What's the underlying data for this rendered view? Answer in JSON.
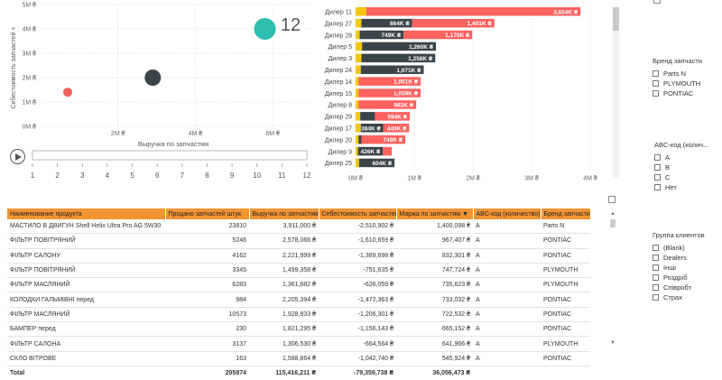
{
  "scatter": {
    "y_label": "Себестоимость запчастей +",
    "x_label": "Выручка по запчастям",
    "y_ticks": [
      "0M ₴",
      "1M ₴",
      "2M ₴",
      "3M ₴",
      "4M ₴",
      "5M ₴"
    ],
    "x_ticks": [
      "2M ₴",
      "4M ₴",
      "6M ₴"
    ],
    "play_value": "12",
    "timeline_ticks": [
      "1",
      "2",
      "3",
      "4",
      "5",
      "6",
      "7",
      "8",
      "9",
      "10",
      "11",
      "12"
    ],
    "points": [
      {
        "x": 0.7,
        "y": 1.4,
        "r": 5,
        "color": "#f25e5e"
      },
      {
        "x": 2.9,
        "y": 2.0,
        "r": 9,
        "color": "#3b4449"
      },
      {
        "x": 5.8,
        "y": 4.0,
        "r": 12,
        "color": "#2ebfae"
      }
    ]
  },
  "chart_data": {
    "type": "bar",
    "stacked": true,
    "orientation": "horizontal",
    "categories": [
      "Дилер 11",
      "Дилер 27",
      "Дилер 28",
      "Дилер 5",
      "Дилер 3",
      "Дилер 24",
      "Дилер 14",
      "Дилер 15",
      "Дилер 8",
      "Дилер 29",
      "Дилер 17",
      "Дилер 20",
      "Дилер 9",
      "Дилер 25"
    ],
    "series": [
      {
        "color": "#f2c80f",
        "values": [
          0.18,
          0.1,
          0.07,
          0.11,
          0.1,
          0.09,
          0.05,
          0.05,
          0.05,
          0.08,
          0.09,
          0.05,
          0.04,
          0.06
        ]
      },
      {
        "color": "#3b4449",
        "values": [
          0,
          0.864,
          0.749,
          1.26,
          1.258,
          1.071,
          0,
          0,
          0,
          0.25,
          0.384,
          0.05,
          0.426,
          0.604
        ]
      },
      {
        "color": "#fd625e",
        "values": [
          3.654,
          1.401,
          1.17,
          0,
          0,
          0,
          1.061,
          1.059,
          0.983,
          0.594,
          0.44,
          0.748,
          0.15,
          0
        ]
      }
    ],
    "labels": [
      [
        "",
        "",
        "3,654K ₴"
      ],
      [
        "",
        "864K ₴",
        "1,401K ₴"
      ],
      [
        "",
        "749K ₴",
        "1,170K ₴"
      ],
      [
        "",
        "1,260K ₴",
        ""
      ],
      [
        "",
        "1,258K ₴",
        ""
      ],
      [
        "",
        "1,071K ₴",
        ""
      ],
      [
        "",
        "",
        "1,061K ₴"
      ],
      [
        "",
        "",
        "1,059K ₴"
      ],
      [
        "",
        "",
        "983K ₴"
      ],
      [
        "",
        "",
        "594K ₴"
      ],
      [
        "",
        "384K ₴",
        "440K ₴"
      ],
      [
        "",
        "",
        "748K ₴"
      ],
      [
        "",
        "426K ₴",
        ""
      ],
      [
        "",
        "604K ₴",
        ""
      ]
    ],
    "x_ticks": [
      "0M ₴",
      "1M ₴",
      "2M ₴",
      "3M ₴",
      "4M ₴"
    ],
    "xlim": [
      0,
      4
    ]
  },
  "table": {
    "headers": [
      "Наименование продукта",
      "Продано запчастей штук",
      "Выручка по запчастям",
      "Себестоимость запчастей",
      "Маржа по запчастям ▼",
      "ABC-код (количество)",
      "Бренд запчасти"
    ],
    "rows": [
      [
        "МАСТИЛО В ДВИГУН Shell Helix Ultra  Pro AG 5W30",
        "23810",
        "3,911,000 ₴",
        "-2,510,902 ₴",
        "1,400,098 ₴",
        "A",
        "Parts N"
      ],
      [
        "ФІЛЬТР ПОВІТРЯНИЙ",
        "5246",
        "2,578,066 ₴",
        "-1,610,659 ₴",
        "967,407 ₴",
        "A",
        "PONTIAC"
      ],
      [
        "ФІЛЬТР САЛОНУ",
        "4162",
        "2,221,999 ₴",
        "-1,389,698 ₴",
        "832,301 ₴",
        "A",
        "PONTIAC"
      ],
      [
        "ФІЛЬТР ПОВІТРЯНИЙ",
        "3345",
        "1,499,358 ₴",
        "-751,635 ₴",
        "747,724 ₴",
        "A",
        "PLYMOUTH"
      ],
      [
        "ФІЛЬТР МАСЛЯНИЙ",
        "6283",
        "1,361,682 ₴",
        "-626,059 ₴",
        "735,623 ₴",
        "A",
        "PLYMOUTH"
      ],
      [
        "КОЛОДКИ ГАЛЬМІВНІ перед",
        "984",
        "2,205,394 ₴",
        "-1,472,363 ₴",
        "733,032 ₴",
        "A",
        "PONTIAC"
      ],
      [
        "ФІЛЬТР МАСЛЯНИЙ",
        "10573",
        "1,928,833 ₴",
        "-1,206,301 ₴",
        "722,532 ₴",
        "A",
        "PONTIAC"
      ],
      [
        "БАМПЕР перед",
        "230",
        "1,821,295 ₴",
        "-1,156,143 ₴",
        "665,152 ₴",
        "A",
        "PONTIAC"
      ],
      [
        "ФІЛЬТР САЛОНА",
        "3137",
        "1,306,530 ₴",
        "-664,564 ₴",
        "641,966 ₴",
        "A",
        "PLYMOUTH"
      ],
      [
        "СКЛО ВІТРОВЕ",
        "163",
        "1,588,664 ₴",
        "-1,042,740 ₴",
        "545,924 ₴",
        "A",
        "PONTIAC"
      ]
    ],
    "total": [
      "Total",
      "205874",
      "115,416,211 ₴",
      "-79,359,738 ₴",
      "36,056,473 ₴",
      "",
      ""
    ]
  },
  "slicers": {
    "brand": {
      "title": "Бренд запчасти",
      "options": [
        "Parts N",
        "PLYMOUTH",
        "PONTIAC"
      ]
    },
    "abc": {
      "title": "ABC-код (колич...",
      "options": [
        "A",
        "B",
        "C",
        "Нет"
      ]
    },
    "group": {
      "title": "Группа клиентов",
      "options": [
        "(Blank)",
        "Dealers",
        "Інші",
        "Роздріб",
        "Співробт",
        "Страх"
      ]
    }
  }
}
